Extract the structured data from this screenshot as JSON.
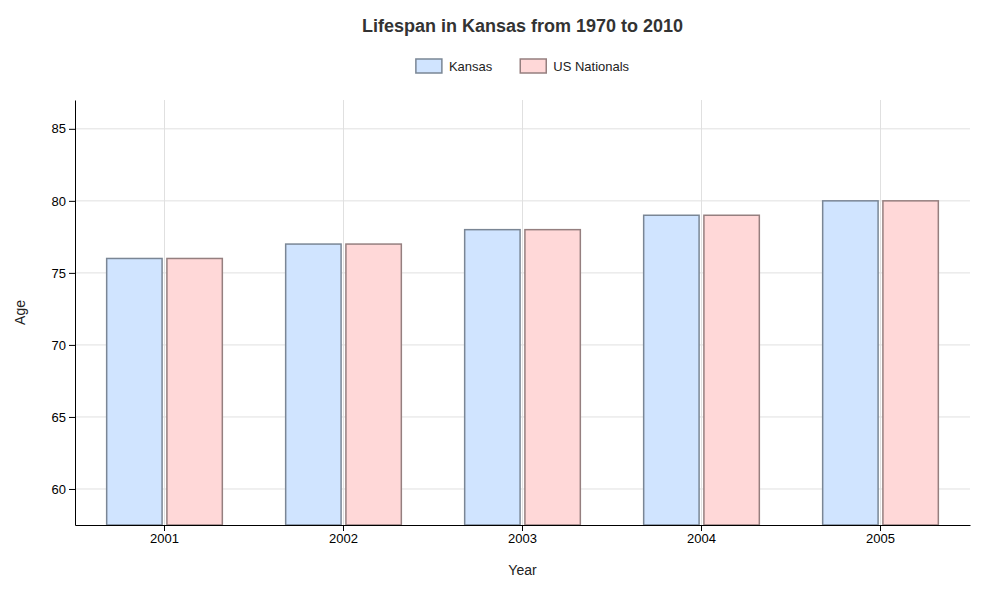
{
  "chart_data": {
    "type": "bar",
    "title": "Lifespan in Kansas from 1970 to 2010",
    "xlabel": "Year",
    "ylabel": "Age",
    "categories": [
      "2001",
      "2002",
      "2003",
      "2004",
      "2005"
    ],
    "series": [
      {
        "name": "Kansas",
        "color": "#d0e4ff",
        "values": [
          76,
          77,
          78,
          79,
          80
        ]
      },
      {
        "name": "US Nationals",
        "color": "#ffd8d8",
        "values": [
          76,
          77,
          78,
          79,
          80
        ]
      }
    ],
    "ylim": [
      57.5,
      87
    ],
    "yticks": [
      60,
      65,
      70,
      75,
      80,
      85
    ],
    "grid": true,
    "legend": "top"
  }
}
